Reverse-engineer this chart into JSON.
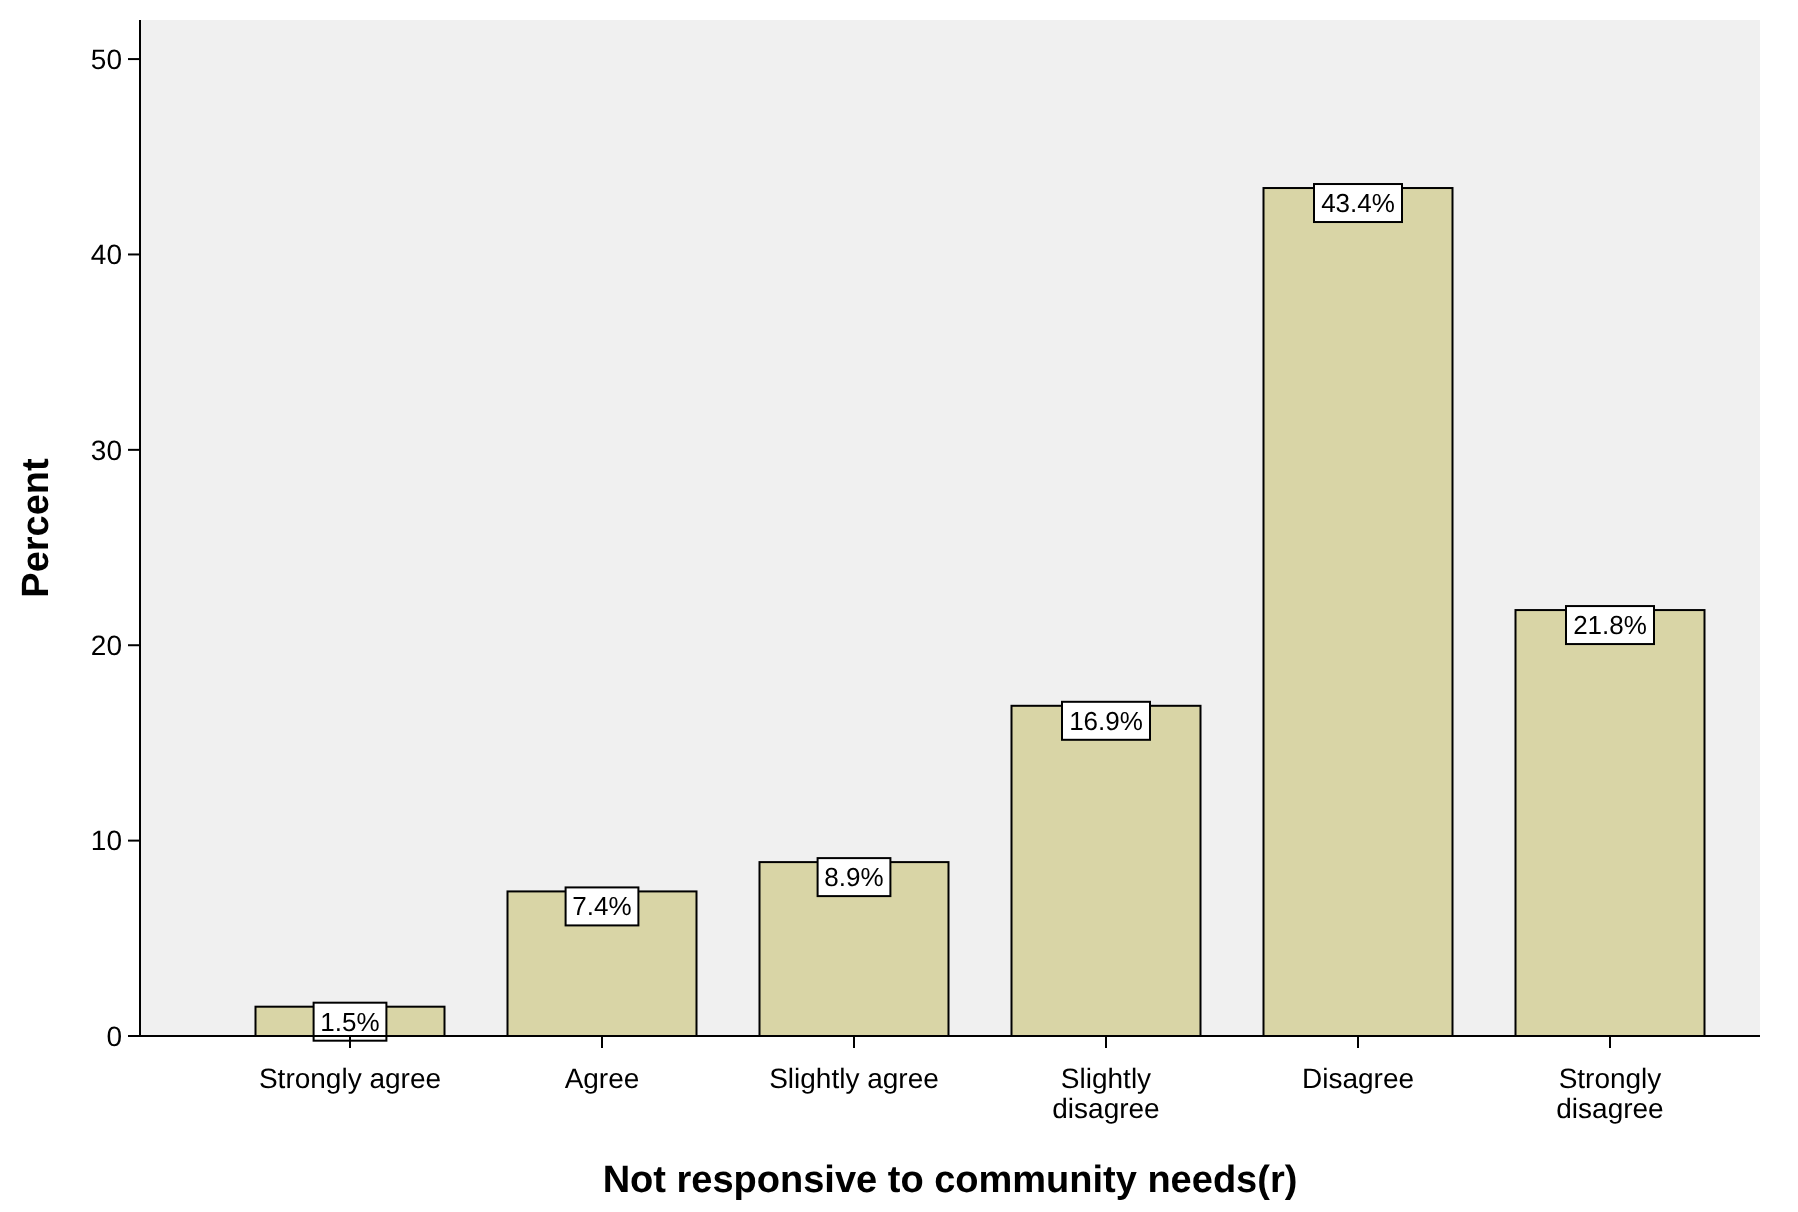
{
  "chart_data": {
    "type": "bar",
    "xlabel": "Not responsive to community needs(r)",
    "ylabel": "Percent",
    "categories": [
      "Strongly agree",
      "Agree",
      "Slightly agree",
      "Slightly disagree",
      "Disagree",
      "Strongly disagree"
    ],
    "values": [
      1.5,
      7.4,
      8.9,
      16.9,
      43.4,
      21.8
    ],
    "value_labels": [
      "1.5%",
      "7.4%",
      "8.9%",
      "16.9%",
      "43.4%",
      "21.8%"
    ],
    "color": "#d9d5a6",
    "ylim": [
      0,
      52
    ],
    "yticks": [
      0,
      10,
      20,
      30,
      40,
      50
    ],
    "grid": false
  }
}
